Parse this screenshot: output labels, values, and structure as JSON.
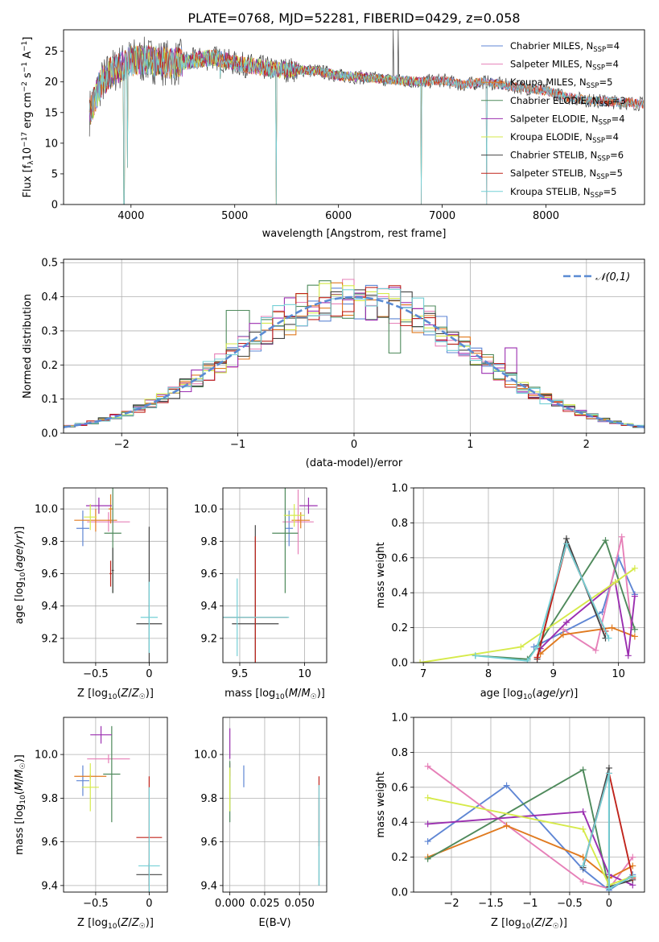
{
  "title": "PLATE=0768, MJD=52281, FIBERID=0429, z=0.058",
  "colors": {
    "series": [
      "#5f86d4",
      "#e680b8",
      "#e07a1f",
      "#4f8a5c",
      "#9b2fb0",
      "#d6ea4a",
      "#444444",
      "#c0241c",
      "#74d0d6"
    ],
    "grid": "#b0b0b0"
  },
  "chart_data": [
    {
      "id": "spectrum",
      "type": "line",
      "xlabel": "wavelength [Angstrom, rest frame]",
      "ylabel": "Flux [f_λ 10^-17 erg cm^-2 s^-1 A^-1]",
      "xlim": [
        3350,
        8950
      ],
      "ylim": [
        0,
        28.5
      ],
      "xticks": [
        4000,
        5000,
        6000,
        7000,
        8000
      ],
      "yticks": [
        0,
        5,
        10,
        15,
        20,
        25
      ],
      "grid": false,
      "legend_position": "top-right",
      "legend": [
        {
          "name": "Chabrier MILES",
          "nssp": "4"
        },
        {
          "name": "Salpeter MILES",
          "nssp": "4"
        },
        {
          "name": "Kroupa MILES",
          "nssp": "5"
        },
        {
          "name": "Chabrier ELODIE",
          "nssp": "3"
        },
        {
          "name": "Salpeter ELODIE",
          "nssp": "4"
        },
        {
          "name": "Kroupa ELODIE",
          "nssp": "4"
        },
        {
          "name": "Chabrier STELIB",
          "nssp": "6"
        },
        {
          "name": "Salpeter STELIB",
          "nssp": "5"
        },
        {
          "name": "Kroupa STELIB",
          "nssp": "5"
        }
      ],
      "continuum": [
        [
          3600,
          15
        ],
        [
          3700,
          19.5
        ],
        [
          3800,
          21.5
        ],
        [
          3900,
          22.5
        ],
        [
          4000,
          23.5
        ],
        [
          4200,
          23.5
        ],
        [
          4400,
          23
        ],
        [
          4600,
          23.5
        ],
        [
          4800,
          24
        ],
        [
          5000,
          23
        ],
        [
          5200,
          22.5
        ],
        [
          5400,
          22
        ],
        [
          5600,
          22
        ],
        [
          5800,
          21.8
        ],
        [
          6000,
          21
        ],
        [
          6200,
          20.8
        ],
        [
          6400,
          20.5
        ],
        [
          6600,
          20.2
        ],
        [
          6800,
          20
        ],
        [
          7000,
          20.3
        ],
        [
          7200,
          19.5
        ],
        [
          7400,
          20
        ],
        [
          7600,
          19.5
        ],
        [
          7800,
          19
        ],
        [
          8000,
          18.5
        ],
        [
          8200,
          17.5
        ],
        [
          8400,
          17
        ],
        [
          8600,
          16.8
        ],
        [
          8800,
          16.6
        ],
        [
          8940,
          16.4
        ]
      ],
      "dips": [
        [
          3933,
          0
        ],
        [
          3968,
          6
        ],
        [
          4861,
          20.5
        ],
        [
          5400,
          0
        ],
        [
          6563,
          21
        ],
        [
          6800,
          0
        ],
        [
          7430,
          0
        ]
      ],
      "spikes": [
        [
          6530,
          28.5
        ],
        [
          6575,
          28.5
        ]
      ]
    },
    {
      "id": "residuals",
      "type": "line",
      "xlabel": "(data-model)/error",
      "ylabel": "Normed distribution",
      "xlim": [
        -2.5,
        2.5
      ],
      "ylim": [
        0,
        0.51
      ],
      "xticks": [
        -2,
        -1,
        0,
        1,
        2
      ],
      "yticks": [
        0.0,
        0.1,
        0.2,
        0.3,
        0.4,
        0.5
      ],
      "grid": true,
      "legend_position": "top-right",
      "reference_label": "𝒩(0,1)",
      "bin_width": 0.1
    },
    {
      "id": "age-vs-Z",
      "type": "scatter",
      "xlabel": "Z [log10(Z/Z⊙)]",
      "ylabel": "age  [log10(age/yr)]",
      "xlim": [
        -0.8,
        0.17
      ],
      "ylim": [
        9.05,
        10.13
      ],
      "xticks": [
        -0.5,
        0.0
      ],
      "yticks": [
        9.2,
        9.4,
        9.6,
        9.8,
        10.0
      ],
      "grid": true
    },
    {
      "id": "age-vs-mass",
      "type": "scatter",
      "xlabel": "mass [log10(M/M⊙)]",
      "ylabel": "",
      "xlim": [
        9.37,
        10.17
      ],
      "ylim": [
        9.05,
        10.13
      ],
      "xticks": [
        9.5,
        10.0
      ],
      "yticks": [
        9.2,
        9.4,
        9.6,
        9.8,
        10.0
      ],
      "grid": true
    },
    {
      "id": "massweight-vs-age",
      "type": "line",
      "xlabel": "age  [log10(age/yr)]",
      "ylabel": "mass weight",
      "xlim": [
        6.85,
        10.4
      ],
      "ylim": [
        0.0,
        1.0
      ],
      "xticks": [
        7,
        8,
        9,
        10
      ],
      "yticks": [
        0.0,
        0.2,
        0.4,
        0.6,
        0.8,
        1.0
      ],
      "grid": true
    },
    {
      "id": "mass-vs-Z",
      "type": "scatter",
      "xlabel": "Z [log10(Z/Z⊙)]",
      "ylabel": "mass [log10(M/M⊙)]",
      "xlim": [
        -0.8,
        0.17
      ],
      "ylim": [
        9.37,
        10.17
      ],
      "xticks": [
        -0.5,
        0.0
      ],
      "yticks": [
        9.4,
        9.6,
        9.8,
        10.0
      ],
      "grid": true
    },
    {
      "id": "mass-vs-ebv",
      "type": "scatter",
      "xlabel": "E(B-V)",
      "ylabel": "",
      "xlim": [
        -0.005,
        0.0695
      ],
      "ylim": [
        9.37,
        10.17
      ],
      "xticks": [
        "0.000",
        "0.025",
        "0.050"
      ],
      "yticks": [
        9.4,
        9.6,
        9.8,
        10.0
      ],
      "grid": true
    },
    {
      "id": "massweight-vs-Z",
      "type": "line",
      "xlabel": "Z [log10(Z/Z⊙)]",
      "ylabel": "mass weight",
      "xlim": [
        -2.48,
        0.45
      ],
      "ylim": [
        0.0,
        1.0
      ],
      "xticks": [
        -2.0,
        -1.5,
        -1.0,
        -0.5,
        0.0
      ],
      "yticks": [
        0.0,
        0.2,
        0.4,
        0.6,
        0.8,
        1.0
      ],
      "grid": true
    }
  ],
  "points": {
    "agez": [
      {
        "s": 0,
        "x": -0.62,
        "y": 9.88,
        "xe": 0.06,
        "ye": 0.11
      },
      {
        "s": 1,
        "x": -0.38,
        "y": 9.92,
        "xe": 0.2,
        "ye": 0.06
      },
      {
        "s": 2,
        "x": -0.5,
        "y": 9.93,
        "xe": 0.2,
        "ye": 0.07
      },
      {
        "s": 2,
        "x": -0.36,
        "y": 10.0,
        "xe": 0.02,
        "ye": 0.09
      },
      {
        "s": 3,
        "x": -0.34,
        "y": 9.85,
        "xe": 0.08,
        "ye": 0.37
      },
      {
        "s": 4,
        "x": -0.47,
        "y": 10.02,
        "xe": 0.12,
        "ye": 0.05
      },
      {
        "s": 5,
        "x": -0.55,
        "y": 9.95,
        "xe": 0.06,
        "ye": 0.08
      },
      {
        "s": 6,
        "x": -0.34,
        "y": 9.62,
        "xe": 0.01,
        "ye": 0.14
      },
      {
        "s": 6,
        "x": 0.0,
        "y": 9.29,
        "xe": 0.12,
        "ye": 0.6
      },
      {
        "s": 7,
        "x": -0.36,
        "y": 9.6,
        "xe": 0.01,
        "ye": 0.08
      },
      {
        "s": 8,
        "x": 0.0,
        "y": 9.33,
        "xe": 0.08,
        "ye": 0.22
      }
    ],
    "agemass": [
      {
        "s": 0,
        "x": 9.88,
        "y": 9.88,
        "xe": 0.03,
        "ye": 0.11
      },
      {
        "s": 1,
        "x": 9.95,
        "y": 9.92,
        "xe": 0.12,
        "ye": 0.2
      },
      {
        "s": 2,
        "x": 9.97,
        "y": 9.93,
        "xe": 0.07,
        "ye": 0.05
      },
      {
        "s": 3,
        "x": 9.85,
        "y": 9.85,
        "xe": 0.1,
        "ye": 0.37
      },
      {
        "s": 4,
        "x": 10.03,
        "y": 10.02,
        "xe": 0.07,
        "ye": 0.05
      },
      {
        "s": 5,
        "x": 9.92,
        "y": 9.96,
        "xe": 0.08,
        "ye": 0.07
      },
      {
        "s": 6,
        "x": 9.62,
        "y": 9.29,
        "xe": 0.18,
        "ye": 0.61
      },
      {
        "s": 7,
        "x": 9.62,
        "y": 9.33,
        "xe": 0.25,
        "ye": 0.5
      },
      {
        "s": 8,
        "x": 9.48,
        "y": 9.33,
        "xe": 0.4,
        "ye": 0.24
      }
    ],
    "massz": [
      {
        "s": 0,
        "x": -0.62,
        "y": 9.88,
        "xe": 0.06,
        "ye": 0.07
      },
      {
        "s": 1,
        "x": -0.38,
        "y": 9.98,
        "xe": 0.2,
        "ye": 0.02
      },
      {
        "s": 2,
        "x": -0.55,
        "y": 9.9,
        "xe": 0.15,
        "ye": 0.01
      },
      {
        "s": 3,
        "x": -0.35,
        "y": 9.91,
        "xe": 0.08,
        "ye": 0.22
      },
      {
        "s": 4,
        "x": -0.45,
        "y": 10.09,
        "xe": 0.1,
        "ye": 0.04
      },
      {
        "s": 5,
        "x": -0.55,
        "y": 9.85,
        "xe": 0.08,
        "ye": 0.11
      },
      {
        "s": 6,
        "x": 0.0,
        "y": 9.45,
        "xe": 0.12,
        "ye": 0.05
      },
      {
        "s": 7,
        "x": 0.0,
        "y": 9.62,
        "xe": 0.12,
        "ye": 0.28
      },
      {
        "s": 8,
        "x": 0.0,
        "y": 9.49,
        "xe": 0.1,
        "ye": 0.36
      }
    ],
    "massebv": [
      {
        "s": 0,
        "x": 0.01,
        "y": 9.9,
        "xe": 0.0,
        "ye": 0.05
      },
      {
        "s": 1,
        "x": 0.0,
        "y": 9.93,
        "xe": 0.0,
        "ye": 0.03
      },
      {
        "s": 3,
        "x": 0.0,
        "y": 9.83,
        "xe": 0.0,
        "ye": 0.14
      },
      {
        "s": 4,
        "x": 0.0,
        "y": 10.05,
        "xe": 0.0,
        "ye": 0.07
      },
      {
        "s": 5,
        "x": 0.0,
        "y": 9.84,
        "xe": 0.0,
        "ye": 0.1
      },
      {
        "s": 6,
        "x": 0.064,
        "y": 9.6,
        "xe": 0.0,
        "ye": 0.2
      },
      {
        "s": 7,
        "x": 0.064,
        "y": 9.74,
        "xe": 0.0,
        "ye": 0.16
      },
      {
        "s": 8,
        "x": 0.064,
        "y": 9.63,
        "xe": 0.0,
        "ye": 0.23
      }
    ]
  },
  "mw_age": [
    [
      [
        8.7,
        0.09
      ],
      [
        9.75,
        0.29
      ],
      [
        10.0,
        0.6
      ],
      [
        10.25,
        0.39
      ]
    ],
    [
      [
        9.15,
        0.19
      ],
      [
        9.65,
        0.07
      ],
      [
        10.05,
        0.72
      ],
      [
        10.2,
        0.2
      ]
    ],
    [
      [
        8.8,
        0.05
      ],
      [
        9.15,
        0.16
      ],
      [
        9.9,
        0.2
      ],
      [
        10.25,
        0.15
      ]
    ],
    [
      [
        7.8,
        0.04
      ],
      [
        8.6,
        0.02
      ],
      [
        8.75,
        0.09
      ],
      [
        9.8,
        0.7
      ],
      [
        10.25,
        0.19
      ]
    ],
    [
      [
        8.8,
        0.08
      ],
      [
        9.2,
        0.23
      ],
      [
        9.95,
        0.46
      ],
      [
        10.15,
        0.04
      ],
      [
        10.25,
        0.38
      ]
    ],
    [
      [
        6.95,
        0.0
      ],
      [
        8.5,
        0.09
      ],
      [
        9.95,
        0.46
      ],
      [
        10.25,
        0.54
      ]
    ],
    [
      [
        8.75,
        0.02
      ],
      [
        9.2,
        0.71
      ],
      [
        9.8,
        0.14
      ]
    ],
    [
      [
        8.75,
        0.03
      ],
      [
        9.2,
        0.68
      ],
      [
        9.8,
        0.18
      ]
    ],
    [
      [
        7.8,
        0.04
      ],
      [
        8.6,
        0.01
      ],
      [
        8.75,
        0.09
      ],
      [
        9.2,
        0.68
      ],
      [
        9.85,
        0.14
      ]
    ]
  ],
  "mw_z": [
    [
      [
        -2.3,
        0.29
      ],
      [
        -1.3,
        0.61
      ],
      [
        -0.33,
        0.13
      ],
      [
        0.0,
        0.01
      ],
      [
        0.3,
        0.1
      ]
    ],
    [
      [
        -2.3,
        0.72
      ],
      [
        -0.33,
        0.06
      ],
      [
        0.0,
        0.02
      ],
      [
        0.3,
        0.2
      ]
    ],
    [
      [
        -2.3,
        0.2
      ],
      [
        -1.3,
        0.38
      ],
      [
        -0.33,
        0.2
      ],
      [
        0.0,
        0.08
      ],
      [
        0.3,
        0.15
      ]
    ],
    [
      [
        -2.3,
        0.19
      ],
      [
        -0.33,
        0.7
      ],
      [
        0.0,
        0.02
      ],
      [
        0.3,
        0.09
      ]
    ],
    [
      [
        -2.3,
        0.39
      ],
      [
        -0.33,
        0.46
      ],
      [
        0.0,
        0.1
      ],
      [
        0.3,
        0.04
      ]
    ],
    [
      [
        -2.3,
        0.54
      ],
      [
        -0.33,
        0.36
      ],
      [
        0.0,
        0.04
      ],
      [
        0.3,
        0.09
      ]
    ],
    [
      [
        -0.33,
        0.14
      ],
      [
        0.0,
        0.71
      ],
      [
        0.0,
        0.03
      ],
      [
        0.3,
        0.07
      ]
    ],
    [
      [
        -0.33,
        0.15
      ],
      [
        0.0,
        0.68
      ],
      [
        0.3,
        0.08
      ]
    ],
    [
      [
        -0.33,
        0.15
      ],
      [
        0.0,
        0.68
      ],
      [
        0.0,
        0.02
      ],
      [
        0.3,
        0.09
      ]
    ]
  ]
}
